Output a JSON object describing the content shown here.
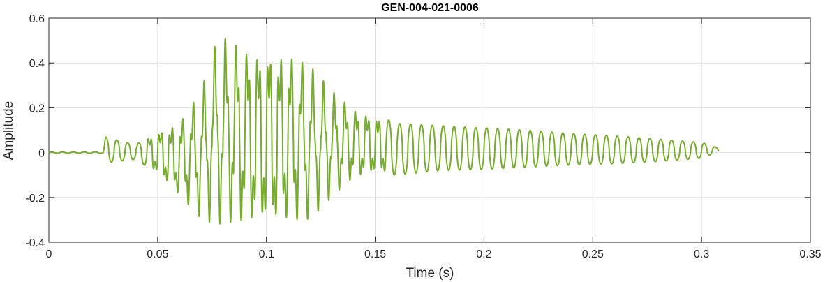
{
  "chart_data": {
    "type": "line",
    "title": "GEN-004-021-0006",
    "xlabel": "Time (s)",
    "ylabel": "Amplitude",
    "xlim": [
      0,
      0.35
    ],
    "ylim": [
      -0.4,
      0.6
    ],
    "xticks": [
      0,
      0.05,
      0.1,
      0.15,
      0.2,
      0.25,
      0.3,
      0.35
    ],
    "xtick_labels": [
      "0",
      "0.05",
      "0.1",
      "0.15",
      "0.2",
      "0.25",
      "0.3",
      "0.35"
    ],
    "yticks": [
      -0.4,
      -0.2,
      0,
      0.2,
      0.4,
      0.6
    ],
    "ytick_labels": [
      "-0.4",
      "-0.2",
      "0",
      "0.2",
      "0.4",
      "0.6"
    ],
    "grid": true,
    "series": [
      {
        "color": "#77ac30",
        "peak_envelope": {
          "x": [
            0.0,
            0.025,
            0.026,
            0.04,
            0.05,
            0.06,
            0.07,
            0.077,
            0.082,
            0.09,
            0.1,
            0.11,
            0.12,
            0.13,
            0.14,
            0.15,
            0.16,
            0.18,
            0.2,
            0.22,
            0.24,
            0.26,
            0.28,
            0.3,
            0.308
          ],
          "upper": [
            0.002,
            0.003,
            0.07,
            0.035,
            0.1,
            0.14,
            0.28,
            0.5,
            0.52,
            0.47,
            0.47,
            0.45,
            0.39,
            0.28,
            0.2,
            0.17,
            0.13,
            0.12,
            0.11,
            0.1,
            0.085,
            0.075,
            0.06,
            0.045,
            0.02
          ],
          "lower": [
            -0.002,
            -0.003,
            -0.045,
            -0.03,
            -0.1,
            -0.2,
            -0.3,
            -0.32,
            -0.32,
            -0.33,
            -0.34,
            -0.32,
            -0.3,
            -0.2,
            -0.12,
            -0.1,
            -0.1,
            -0.08,
            -0.075,
            -0.065,
            -0.055,
            -0.05,
            -0.04,
            -0.025,
            0.005
          ]
        },
        "oscillation_period_s": 0.005
      }
    ]
  }
}
